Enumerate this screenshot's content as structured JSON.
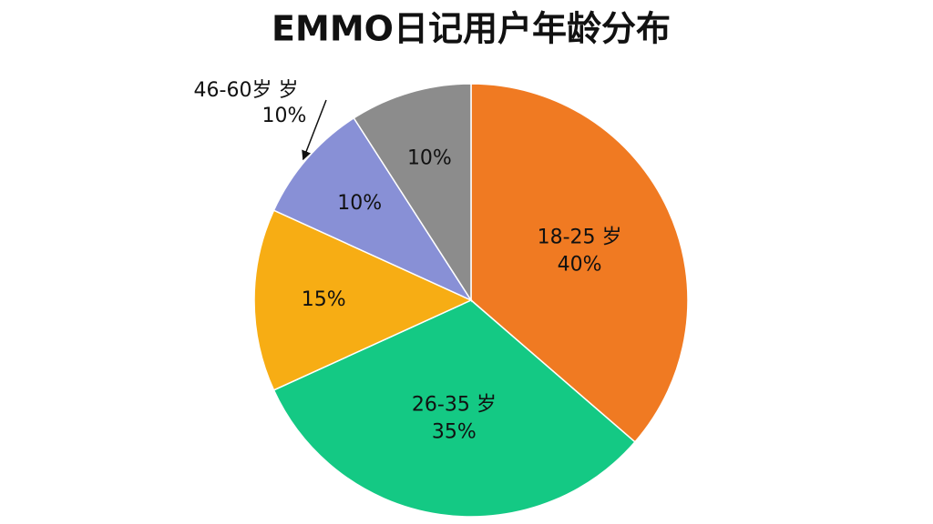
{
  "chart_data": {
    "type": "pie",
    "title": "EMMO日记用户年龄分布",
    "categories": [
      "18-25 岁",
      "26-35 岁",
      null,
      "46-60岁 岁",
      null
    ],
    "values": [
      40,
      35,
      15,
      10,
      10
    ],
    "value_labels": [
      "40%",
      "35%",
      "15%",
      "10%",
      "10%"
    ],
    "colors": [
      "#f07a22",
      "#14c984",
      "#f7ad14",
      "#8890d6",
      "#8c8c8c"
    ]
  }
}
